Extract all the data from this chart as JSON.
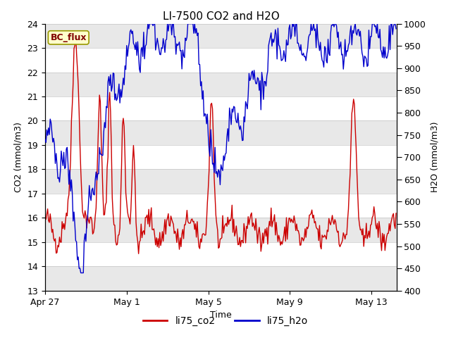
{
  "title": "LI-7500 CO2 and H2O",
  "xlabel": "Time",
  "ylabel_left": "CO2 (mmol/m3)",
  "ylabel_right": "H2O (mmol/m3)",
  "ylim_left": [
    13.0,
    24.0
  ],
  "ylim_right": [
    400,
    1000
  ],
  "yticks_left": [
    13.0,
    14.0,
    15.0,
    16.0,
    17.0,
    18.0,
    19.0,
    20.0,
    21.0,
    22.0,
    23.0,
    24.0
  ],
  "yticks_right": [
    400,
    450,
    500,
    550,
    600,
    650,
    700,
    750,
    800,
    850,
    900,
    950,
    1000
  ],
  "xtick_labels": [
    "Apr 27",
    "May 1",
    "May 5",
    "May 9",
    "May 13"
  ],
  "xtick_positions": [
    0,
    96,
    192,
    288,
    384
  ],
  "xlim": [
    0,
    414
  ],
  "legend_labels": [
    "li75_co2",
    "li75_h2o"
  ],
  "legend_colors": [
    "#cc0000",
    "#0000cc"
  ],
  "bc_flux_text": "BC_flux",
  "bc_flux_bg": "#ffffcc",
  "bc_flux_border": "#999900",
  "bc_flux_text_color": "#800000",
  "line_color_co2": "#cc0000",
  "line_color_h2o": "#0000cc",
  "line_width": 1.0,
  "background_color": "#ffffff",
  "band_color": "#e8e8e8",
  "title_fontsize": 11,
  "axis_fontsize": 9,
  "tick_fontsize": 9
}
